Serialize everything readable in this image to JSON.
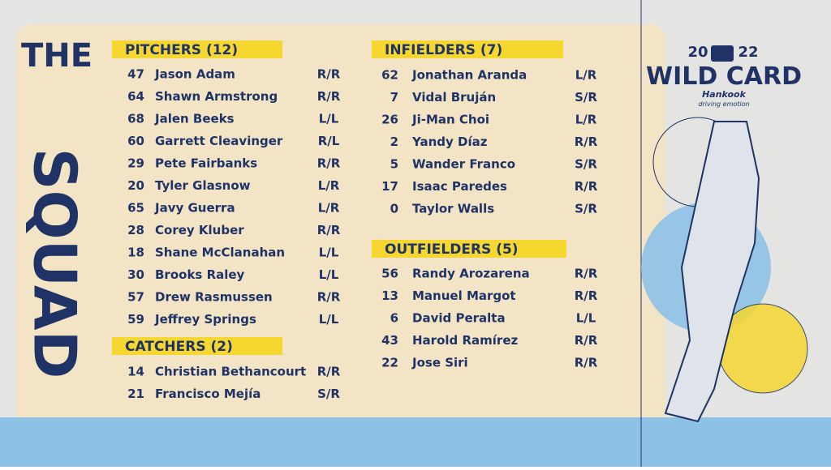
{
  "title": {
    "line1": "THE",
    "line2": "SQUAD"
  },
  "logo": {
    "year_left": "20",
    "year_right": "22",
    "event": "WILD CARD",
    "sponsor": "Hankook",
    "tagline": "driving emotion"
  },
  "sections": [
    {
      "header": "PITCHERS (12)",
      "players": [
        [
          "47",
          "Jason Adam",
          "R/R"
        ],
        [
          "64",
          "Shawn Armstrong",
          "R/R"
        ],
        [
          "68",
          "Jalen Beeks",
          "L/L"
        ],
        [
          "60",
          "Garrett Cleavinger",
          "R/L"
        ],
        [
          "29",
          "Pete Fairbanks",
          "R/R"
        ],
        [
          "20",
          "Tyler Glasnow",
          "L/R"
        ],
        [
          "65",
          "Javy Guerra",
          "L/R"
        ],
        [
          "28",
          "Corey Kluber",
          "R/R"
        ],
        [
          "18",
          "Shane McClanahan",
          "L/L"
        ],
        [
          "30",
          "Brooks Raley",
          "L/L"
        ],
        [
          "57",
          "Drew Rasmussen",
          "R/R"
        ],
        [
          "59",
          "Jeffrey Springs",
          "L/L"
        ]
      ]
    },
    {
      "header": "CATCHERS (2)",
      "players": [
        [
          "14",
          "Christian Bethancourt",
          "R/R"
        ],
        [
          "21",
          "Francisco Mejía",
          "S/R"
        ]
      ]
    },
    {
      "header": "INFIELDERS (7)",
      "players": [
        [
          "62",
          "Jonathan Aranda",
          "L/R"
        ],
        [
          "7",
          "Vidal Bruján",
          "S/R"
        ],
        [
          "26",
          "Ji-Man Choi",
          "L/R"
        ],
        [
          "2",
          "Yandy Díaz",
          "R/R"
        ],
        [
          "5",
          "Wander Franco",
          "S/R"
        ],
        [
          "17",
          "Isaac Paredes",
          "R/R"
        ],
        [
          "0",
          "Taylor Walls",
          "S/R"
        ]
      ]
    },
    {
      "header": "OUTFIELDERS (5)",
      "players": [
        [
          "56",
          "Randy Arozarena",
          "R/R"
        ],
        [
          "13",
          "Manuel Margot",
          "R/R"
        ],
        [
          "6",
          "David Peralta",
          "L/L"
        ],
        [
          "43",
          "Harold Ramírez",
          "R/R"
        ],
        [
          "22",
          "Jose Siri",
          "R/R"
        ]
      ]
    }
  ]
}
